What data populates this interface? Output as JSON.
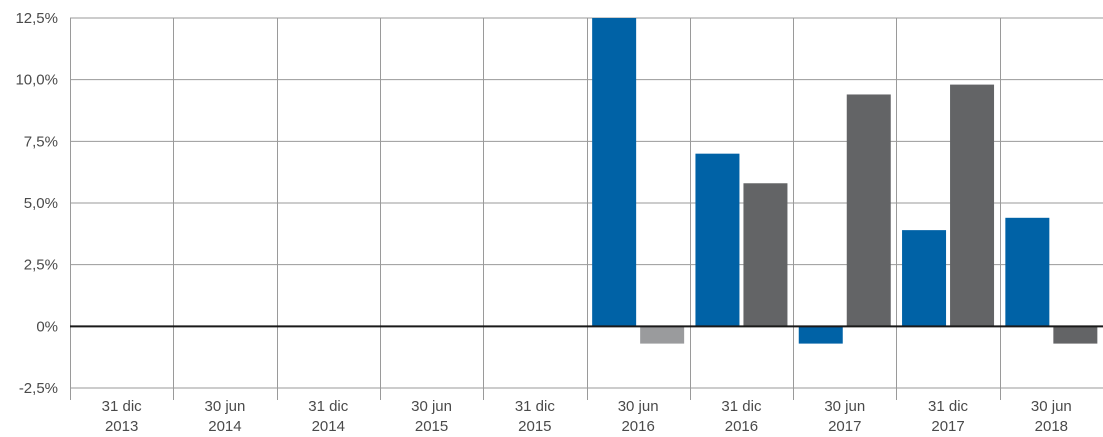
{
  "chart_data": {
    "type": "bar",
    "categories": [
      [
        "31 dic",
        "2013"
      ],
      [
        "30 jun",
        "2014"
      ],
      [
        "31 dic",
        "2014"
      ],
      [
        "30 jun",
        "2015"
      ],
      [
        "31 dic",
        "2015"
      ],
      [
        "30 jun",
        "2016"
      ],
      [
        "31 dic",
        "2016"
      ],
      [
        "30 jun",
        "2017"
      ],
      [
        "31 dic",
        "2017"
      ],
      [
        "30 jun",
        "2018"
      ]
    ],
    "series": [
      {
        "color": "#0062a6",
        "values": [
          null,
          null,
          null,
          null,
          null,
          12.5,
          7.0,
          -0.7,
          3.9,
          4.4
        ]
      },
      {
        "color": "#636466",
        "colors": [
          null,
          null,
          null,
          null,
          null,
          "#9a9b9d",
          null,
          null,
          null,
          null
        ],
        "values": [
          null,
          null,
          null,
          null,
          null,
          -0.7,
          5.8,
          9.4,
          9.8,
          -0.7
        ]
      }
    ],
    "ylim": [
      -2.5,
      12.5
    ],
    "yticks": [
      12.5,
      10.0,
      7.5,
      5.0,
      2.5,
      0,
      -2.5
    ],
    "ytick_labels": [
      "12,5%",
      "10,0%",
      "7,5%",
      "5,0%",
      "2,5%",
      "0%",
      "-2,5%"
    ],
    "grid": true,
    "legend": "none",
    "zero_line_color": "#1a1a1a",
    "grid_color": "#9a9a9a"
  }
}
